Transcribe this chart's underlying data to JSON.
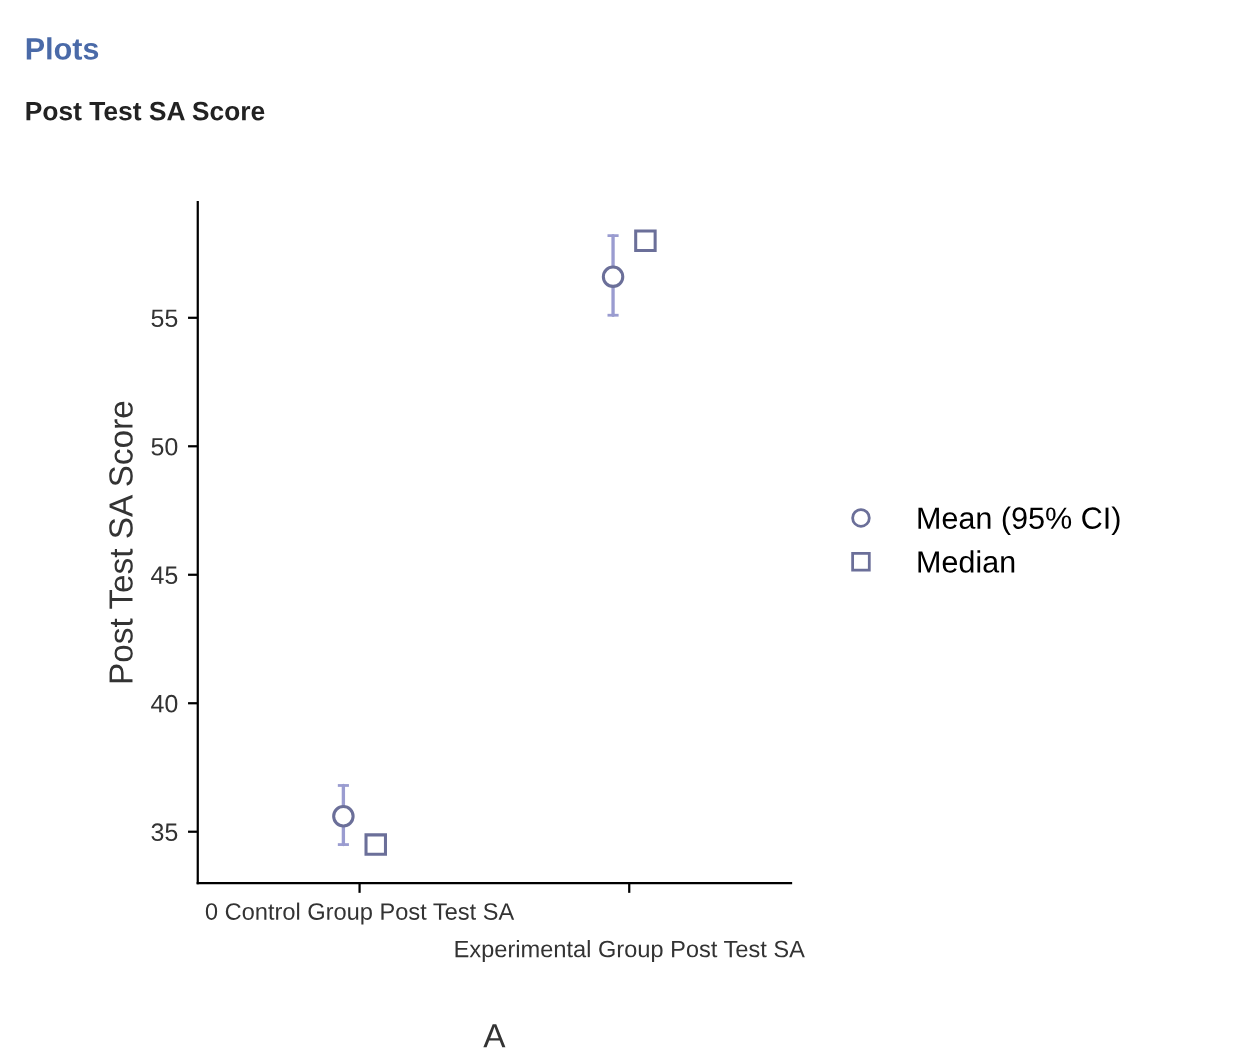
{
  "chart_data": {
    "type": "scatter",
    "title": "Plots",
    "subtitle": "Post Test SA Score",
    "xlabel": "A",
    "ylabel": "Post Test SA Score",
    "categories": [
      "0 Control Group Post Test SA",
      "Experimental Group Post Test SA"
    ],
    "series": [
      {
        "name": "Mean (95% CI)",
        "color": "#6b6f99",
        "marker": "circle",
        "values": [
          35.6,
          56.6
        ],
        "errors": [
          [
            34.5,
            36.8
          ],
          [
            55.1,
            58.2
          ]
        ]
      },
      {
        "name": "Median",
        "color": "#6b6f99",
        "marker": "square",
        "values": [
          34.5,
          58.0
        ]
      }
    ],
    "ylim": [
      33,
      59.5
    ],
    "yticks": [
      35,
      40,
      45,
      50,
      55
    ],
    "grid": false,
    "legend": "right"
  }
}
